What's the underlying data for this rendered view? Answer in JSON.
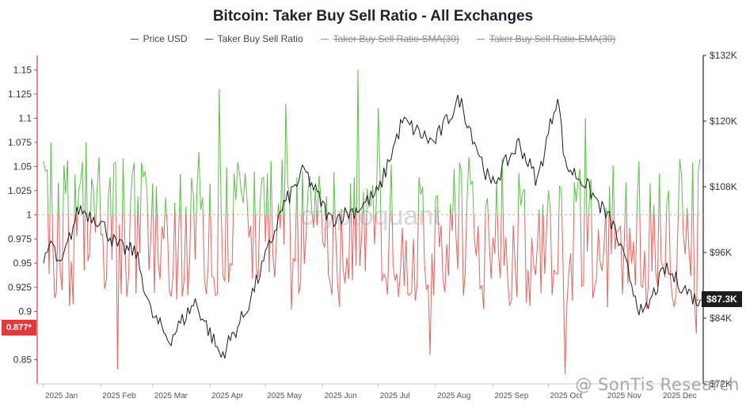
{
  "title": "Bitcoin: Taker Buy Sell Ratio - All Exchanges",
  "legend": [
    {
      "label": "Price USD",
      "active": true
    },
    {
      "label": "Taker Buy Sell Ratio",
      "active": true
    },
    {
      "label": "Taker Buy Sell Ratio-SMA(30)",
      "active": false
    },
    {
      "label": "Taker Buy Sell Ratio-EMA(30)",
      "active": false
    }
  ],
  "current_ratio_tag": "0.877*",
  "current_price_tag": "$87.3K",
  "watermark": "cryptoquant",
  "credit": "@ SonTis Research",
  "colors": {
    "up": "#5cbf4a",
    "down": "#e8605a",
    "price": "#1a1a1a",
    "axis_left": "#e03a3a",
    "axis_right": "#222222"
  },
  "chart_data": {
    "type": "line",
    "title": "Bitcoin: Taker Buy Sell Ratio - All Exchanges",
    "x_months": [
      "2025 Jan",
      "2025 Feb",
      "2025 Mar",
      "2025 Apr",
      "2025 May",
      "2025 Jun",
      "2025 Jul",
      "2025 Aug",
      "2025 Sep",
      "2025 Oct",
      "2025 Nov",
      "2025 Dec"
    ],
    "y_left": {
      "label": "Taker Buy Sell Ratio",
      "range": [
        0.825,
        1.165
      ],
      "baseline": 1.0,
      "ticks": [
        "0.85",
        "0.9",
        "0.925",
        "0.95",
        "0.975",
        "1",
        "1.025",
        "1.05",
        "1.075",
        "1.1",
        "1.125",
        "1.15"
      ],
      "tick_values": [
        0.85,
        0.9,
        0.925,
        0.95,
        0.975,
        1.0,
        1.025,
        1.05,
        1.075,
        1.1,
        1.125,
        1.15
      ]
    },
    "y_right": {
      "label": "Price USD",
      "range": [
        72000,
        132000
      ],
      "ticks": [
        "$72K",
        "$84K",
        "$96K",
        "$108K",
        "$120K",
        "$132K"
      ],
      "tick_values": [
        72000,
        84000,
        96000,
        108000,
        120000,
        132000
      ]
    },
    "ratio_peaks": [
      {
        "date": "2025-01-05",
        "value": 1.075
      },
      {
        "date": "2025-01-24",
        "value": 1.075
      },
      {
        "date": "2025-02-10",
        "value": 0.84
      },
      {
        "date": "2025-03-26",
        "value": 1.065
      },
      {
        "date": "2025-04-06",
        "value": 1.13
      },
      {
        "date": "2025-05-12",
        "value": 1.115
      },
      {
        "date": "2025-06-20",
        "value": 1.15
      },
      {
        "date": "2025-07-01",
        "value": 1.11
      },
      {
        "date": "2025-07-29",
        "value": 0.855
      },
      {
        "date": "2025-10-10",
        "value": 0.835
      },
      {
        "date": "2025-10-21",
        "value": 1.1
      },
      {
        "date": "2025-12-20",
        "value": 0.877
      }
    ],
    "price_points": [
      {
        "date": "2025-01-01",
        "value": 94000
      },
      {
        "date": "2025-01-05",
        "value": 98000
      },
      {
        "date": "2025-01-10",
        "value": 93000
      },
      {
        "date": "2025-01-20",
        "value": 104000
      },
      {
        "date": "2025-01-31",
        "value": 102000
      },
      {
        "date": "2025-02-10",
        "value": 97000
      },
      {
        "date": "2025-02-20",
        "value": 96000
      },
      {
        "date": "2025-02-28",
        "value": 85000
      },
      {
        "date": "2025-03-10",
        "value": 80000
      },
      {
        "date": "2025-03-24",
        "value": 87000
      },
      {
        "date": "2025-04-07",
        "value": 77000
      },
      {
        "date": "2025-04-20",
        "value": 85000
      },
      {
        "date": "2025-05-01",
        "value": 95000
      },
      {
        "date": "2025-05-10",
        "value": 104000
      },
      {
        "date": "2025-05-22",
        "value": 111000
      },
      {
        "date": "2025-06-05",
        "value": 102000
      },
      {
        "date": "2025-06-20",
        "value": 104000
      },
      {
        "date": "2025-07-01",
        "value": 107000
      },
      {
        "date": "2025-07-14",
        "value": 120000
      },
      {
        "date": "2025-07-31",
        "value": 116000
      },
      {
        "date": "2025-08-14",
        "value": 124000
      },
      {
        "date": "2025-08-31",
        "value": 108000
      },
      {
        "date": "2025-09-15",
        "value": 116000
      },
      {
        "date": "2025-09-25",
        "value": 109000
      },
      {
        "date": "2025-10-06",
        "value": 125000
      },
      {
        "date": "2025-10-10",
        "value": 112000
      },
      {
        "date": "2025-10-20",
        "value": 109000
      },
      {
        "date": "2025-11-05",
        "value": 101000
      },
      {
        "date": "2025-11-21",
        "value": 84000
      },
      {
        "date": "2025-12-03",
        "value": 93000
      },
      {
        "date": "2025-12-20",
        "value": 87300
      }
    ]
  }
}
